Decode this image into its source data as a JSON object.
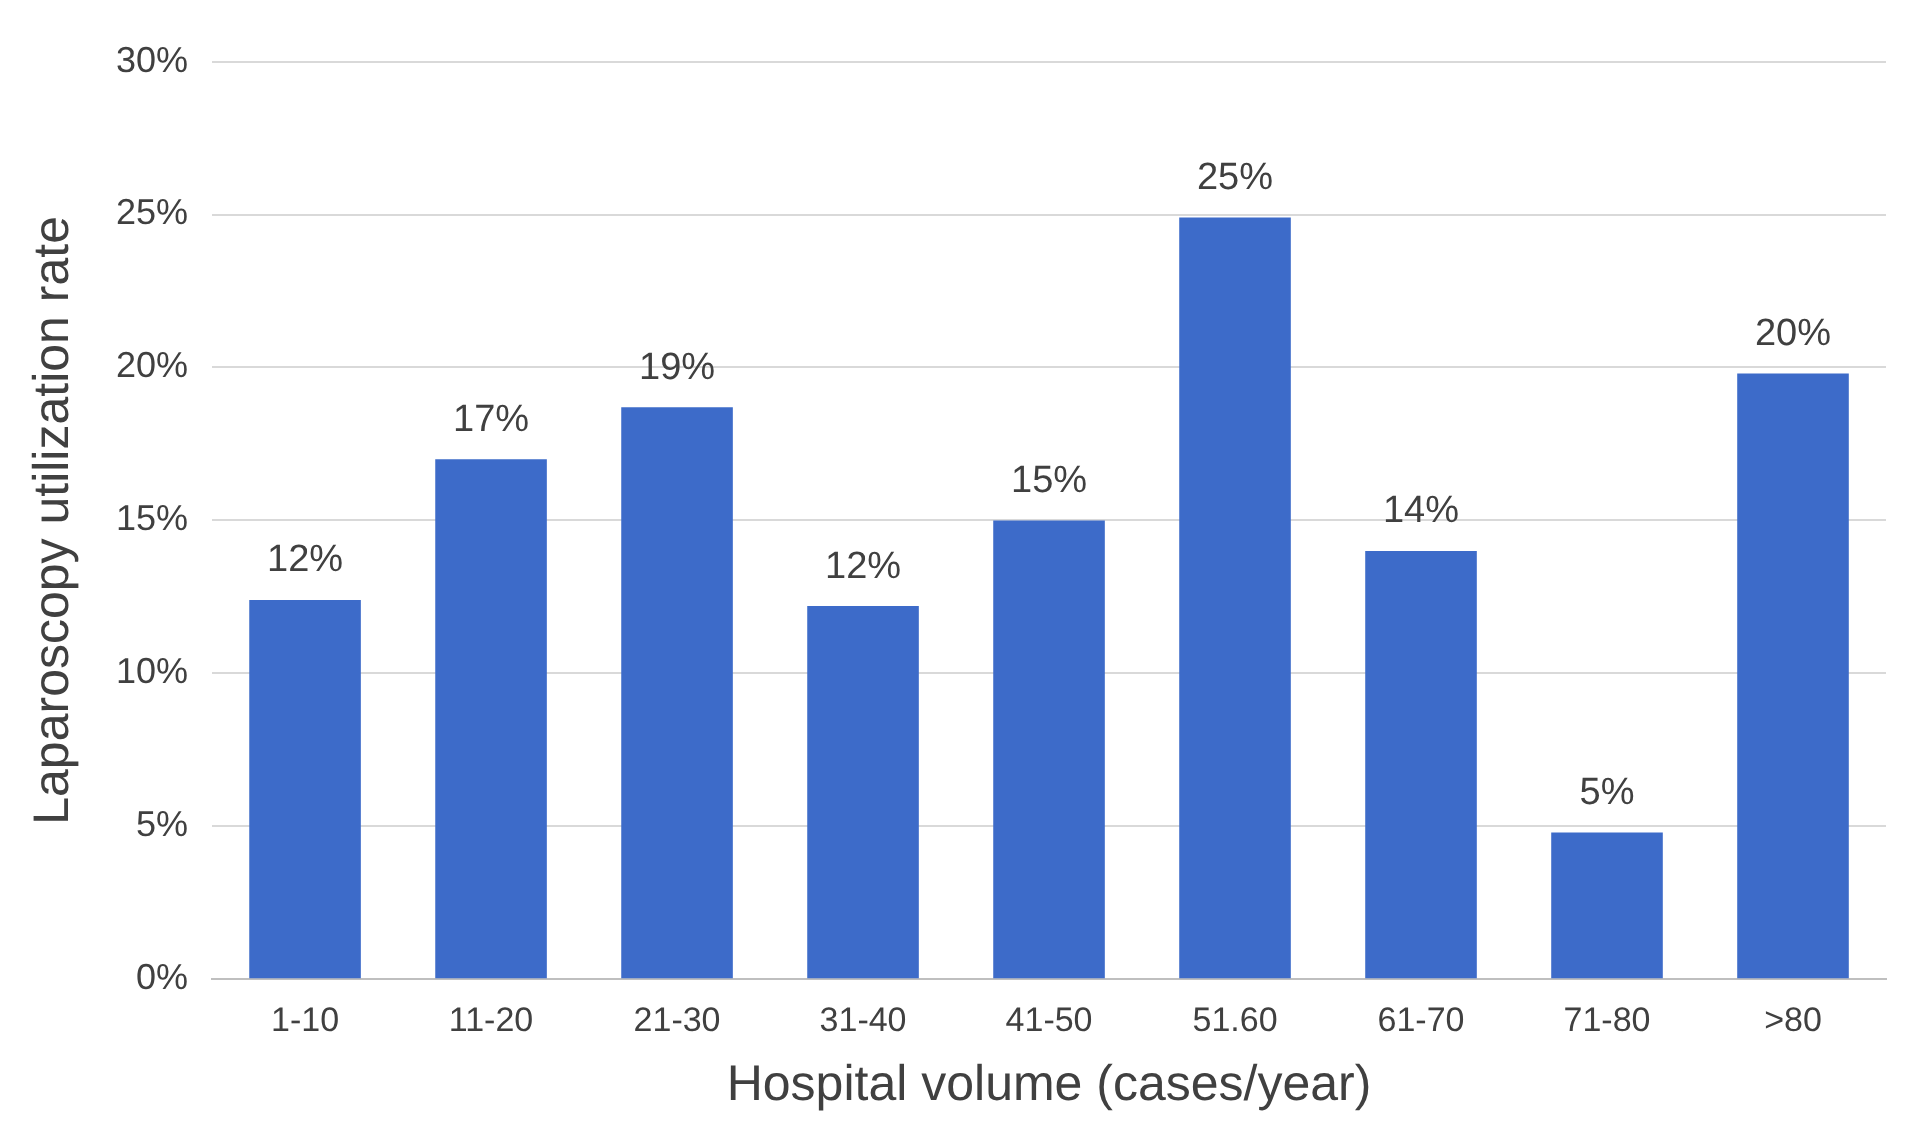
{
  "chart_data": {
    "type": "bar",
    "xlabel": "Hospital volume (cases/year)",
    "ylabel": "Laparoscopy utilization rate",
    "categories": [
      "1-10",
      "11-20",
      "21-30",
      "31-40",
      "41-50",
      "51.60",
      "61-70",
      "71-80",
      ">80"
    ],
    "values": [
      12.4,
      17,
      18.7,
      12.2,
      15,
      24.9,
      14,
      4.8,
      19.8
    ],
    "value_labels": [
      "12%",
      "17%",
      "19%",
      "12%",
      "15%",
      "25%",
      "14%",
      "5%",
      "20%"
    ],
    "color": "#3d6bc9",
    "ylim": [
      0,
      30
    ],
    "yticks": [
      {
        "value": 0,
        "label": "0%"
      },
      {
        "value": 5,
        "label": "5%"
      },
      {
        "value": 10,
        "label": "10%"
      },
      {
        "value": 15,
        "label": "15%"
      },
      {
        "value": 20,
        "label": "20%"
      },
      {
        "value": 25,
        "label": "25%"
      },
      {
        "value": 30,
        "label": "30%"
      }
    ],
    "grid": "y",
    "legend": false
  }
}
